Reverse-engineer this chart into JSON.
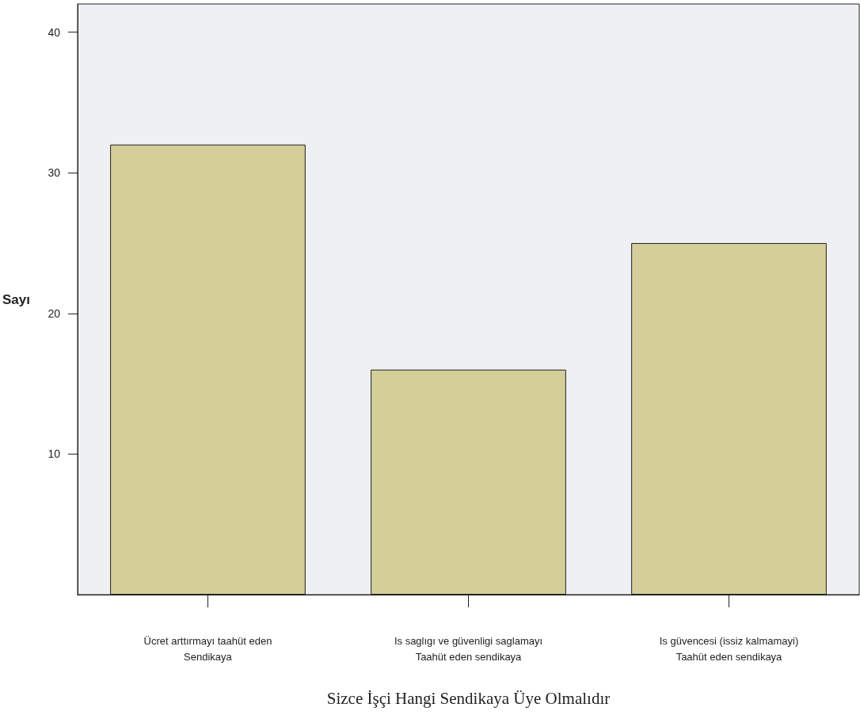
{
  "chart_data": {
    "type": "bar",
    "xlabel": "Sizce İşçi Hangi Sendikaya Üye Olmalıdır",
    "ylabel": "Sayı",
    "categories": [
      "Ücret arttırmayı taahüt eden\nSendikaya",
      "Is saglıgı ve güvenligi saglamayı\nTaahüt eden sendikaya",
      "Is güvencesi (issiz kalmamayi)\nTaahüt eden sendikaya"
    ],
    "values": [
      32,
      16,
      25
    ],
    "color": "#d4cf98",
    "ylim": [
      0,
      42
    ],
    "yticks": [
      10,
      20,
      30,
      40
    ],
    "grid": false
  }
}
